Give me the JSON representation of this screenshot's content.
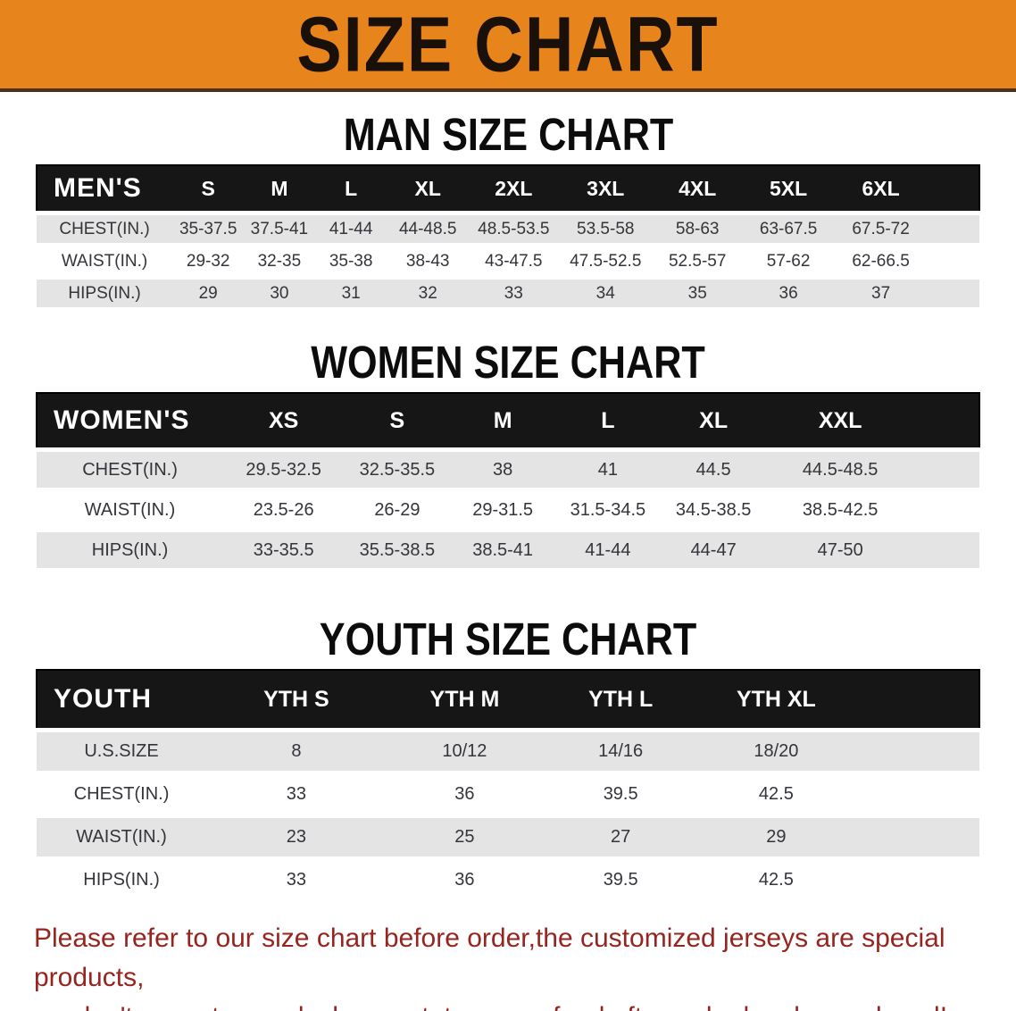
{
  "banner": {
    "title": "SIZE CHART",
    "background_color": "#E8841C"
  },
  "sections": {
    "men": {
      "title": "MAN SIZE CHART",
      "table": {
        "header": [
          "MEN'S",
          "S",
          "M",
          "L",
          "XL",
          "2XL",
          "3XL",
          "4XL",
          "5XL",
          "6XL"
        ],
        "rows": [
          [
            "CHEST(IN.)",
            "35-37.5",
            "37.5-41",
            "41-44",
            "44-48.5",
            "48.5-53.5",
            "53.5-58",
            "58-63",
            "63-67.5",
            "67.5-72"
          ],
          [
            "WAIST(IN.)",
            "29-32",
            "32-35",
            "35-38",
            "38-43",
            "43-47.5",
            "47.5-52.5",
            "52.5-57",
            "57-62",
            "62-66.5"
          ],
          [
            "HIPS(IN.)",
            "29",
            "30",
            "31",
            "32",
            "33",
            "34",
            "35",
            "36",
            "37"
          ]
        ]
      }
    },
    "women": {
      "title": "WOMEN SIZE CHART",
      "table": {
        "header": [
          "WOMEN'S",
          "XS",
          "S",
          "M",
          "L",
          "XL",
          "XXL"
        ],
        "rows": [
          [
            "CHEST(IN.)",
            "29.5-32.5",
            "32.5-35.5",
            "38",
            "41",
            "44.5",
            "44.5-48.5"
          ],
          [
            "WAIST(IN.)",
            "23.5-26",
            "26-29",
            "29-31.5",
            "31.5-34.5",
            "34.5-38.5",
            "38.5-42.5"
          ],
          [
            "HIPS(IN.)",
            "33-35.5",
            "35.5-38.5",
            "38.5-41",
            "41-44",
            "44-47",
            "47-50"
          ]
        ]
      }
    },
    "youth": {
      "title": "YOUTH SIZE CHART",
      "table": {
        "header": [
          "YOUTH",
          "YTH S",
          "YTH M",
          "YTH L",
          "YTH XL"
        ],
        "rows": [
          [
            "U.S.SIZE",
            "8",
            "10/12",
            "14/16",
            "18/20"
          ],
          [
            "CHEST(IN.)",
            "33",
            "36",
            "39.5",
            "42.5"
          ],
          [
            "WAIST(IN.)",
            "23",
            "25",
            "27",
            "29"
          ],
          [
            "HIPS(IN.)",
            "33",
            "36",
            "39.5",
            "42.5"
          ]
        ]
      }
    }
  },
  "disclaimer": {
    "line1": "Please refer to our size chart before order,the customized jerseys are special products,",
    "line2": "we don't accept cancel, change, teturn or refund after order has been placed!",
    "text_color": "#96241F"
  }
}
